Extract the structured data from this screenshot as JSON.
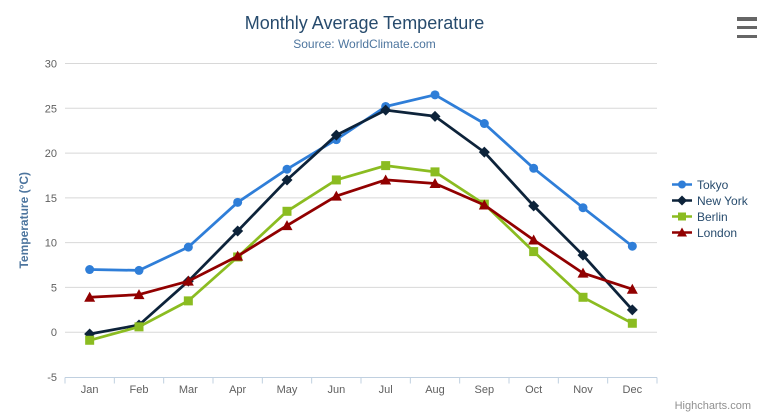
{
  "theme": {
    "background": "#ffffff",
    "title_color": "#274b6d",
    "subtitle_color": "#4d759e",
    "axis_title_color": "#4d759e",
    "axis_label_color": "#606060",
    "grid_color": "#d8d8d8",
    "axis_line_color": "#c0d0e0",
    "legend_text_color": "#274b6d",
    "credits_color": "#909090",
    "export_icon_color": "#666666"
  },
  "icons": {
    "export_menu": "hamburger-menu-icon"
  },
  "credits": {
    "text": "Highcharts.com"
  },
  "chart_data": {
    "type": "line",
    "title": "Monthly Average Temperature",
    "subtitle": "Source: WorldClimate.com",
    "xlabel": "",
    "ylabel": "Temperature (°C)",
    "categories": [
      "Jan",
      "Feb",
      "Mar",
      "Apr",
      "May",
      "Jun",
      "Jul",
      "Aug",
      "Sep",
      "Oct",
      "Nov",
      "Dec"
    ],
    "ylim": [
      -5,
      30
    ],
    "ytick_interval": 5,
    "grid": true,
    "legend_position": "right",
    "series": [
      {
        "name": "Tokyo",
        "color": "#2f7ed8",
        "marker": "circle",
        "values": [
          7.0,
          6.9,
          9.5,
          14.5,
          18.2,
          21.5,
          25.2,
          26.5,
          23.3,
          18.3,
          13.9,
          9.6
        ]
      },
      {
        "name": "New York",
        "color": "#0d233a",
        "marker": "diamond",
        "values": [
          -0.2,
          0.8,
          5.7,
          11.3,
          17.0,
          22.0,
          24.8,
          24.1,
          20.1,
          14.1,
          8.6,
          2.5
        ]
      },
      {
        "name": "Berlin",
        "color": "#8bbc21",
        "marker": "square",
        "values": [
          -0.9,
          0.6,
          3.5,
          8.4,
          13.5,
          17.0,
          18.6,
          17.9,
          14.3,
          9.0,
          3.9,
          1.0
        ]
      },
      {
        "name": "London",
        "color": "#910000",
        "marker": "triangle",
        "values": [
          3.9,
          4.2,
          5.7,
          8.5,
          11.9,
          15.2,
          17.0,
          16.6,
          14.2,
          10.3,
          6.6,
          4.8
        ]
      }
    ]
  }
}
